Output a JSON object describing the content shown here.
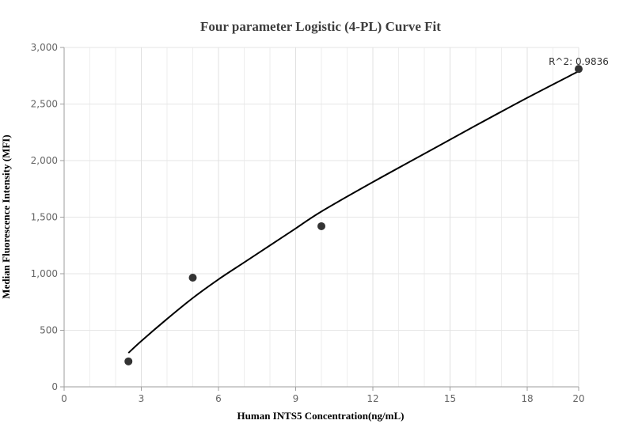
{
  "chart_data": {
    "type": "scatter",
    "title": "Four parameter Logistic (4-PL) Curve Fit",
    "xlabel": "Human INTS5 Concentration(ng/mL)",
    "ylabel": "Median Fluorescence Intensity (MFI)",
    "xlim": [
      0,
      20
    ],
    "ylim": [
      0,
      3000
    ],
    "x_ticks": [
      0,
      3,
      6,
      9,
      12,
      15,
      18,
      20
    ],
    "x_tick_labels": [
      "0",
      "3",
      "6",
      "9",
      "12",
      "15",
      "18",
      "20"
    ],
    "y_ticks": [
      0,
      500,
      1000,
      1500,
      2000,
      2500,
      3000
    ],
    "y_tick_labels": [
      "0",
      "500",
      "1,000",
      "1,500",
      "2,000",
      "2,500",
      "3,000"
    ],
    "grid": true,
    "series": [
      {
        "kind": "points",
        "x": [
          2.5,
          5,
          10,
          20
        ],
        "y": [
          225,
          965,
          1420,
          2810
        ],
        "color": "#333333"
      },
      {
        "kind": "fit-curve",
        "x": [
          2.5,
          3,
          4,
          5,
          6,
          7,
          8,
          9,
          10,
          12,
          14,
          16,
          18,
          20
        ],
        "y": [
          300,
          405,
          600,
          785,
          950,
          1100,
          1250,
          1400,
          1550,
          1810,
          2060,
          2310,
          2555,
          2790
        ],
        "color": "#000000"
      }
    ],
    "annotation": {
      "text": "R^2: 0.9836",
      "x": 20,
      "y": 2810
    }
  }
}
